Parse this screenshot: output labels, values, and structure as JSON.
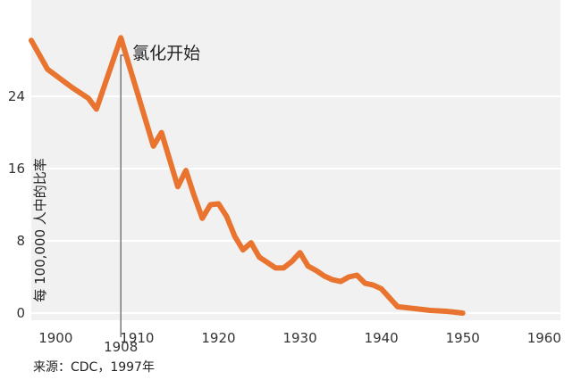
{
  "chart_data": {
    "type": "line",
    "title": "",
    "xlabel": "",
    "ylabel": "每 100,000 人中的比率",
    "xlim": [
      1897,
      1962
    ],
    "ylim": [
      0,
      33
    ],
    "x_ticks": [
      1900,
      1910,
      1920,
      1930,
      1940,
      1950,
      1960
    ],
    "x_tick_labels": [
      "1900",
      "1910",
      "1920",
      "1930",
      "1940",
      "1950",
      "1960"
    ],
    "y_ticks": [
      0,
      8,
      16,
      24
    ],
    "y_tick_labels": [
      "0",
      "8",
      "16",
      "24"
    ],
    "grid": "horizontal",
    "legend": "none",
    "series": [
      {
        "x": [
          1897,
          1899,
          1902,
          1904,
          1905,
          1908,
          1909,
          1910,
          1911,
          1912,
          1913,
          1914,
          1915,
          1916,
          1917,
          1918,
          1919,
          1920,
          1921,
          1922,
          1923,
          1924,
          1925,
          1926,
          1927,
          1928,
          1929,
          1930,
          1931,
          1932,
          1933,
          1934,
          1935,
          1936,
          1937,
          1938,
          1939,
          1940,
          1942,
          1944,
          1946,
          1948,
          1950
        ],
        "y": [
          30.2,
          27,
          25,
          23.8,
          22.6,
          30.5,
          27.5,
          24.5,
          21.5,
          18.5,
          20,
          17,
          14,
          15.8,
          13,
          10.5,
          12,
          12.1,
          10.7,
          8.5,
          7,
          7.8,
          6.2,
          5.6,
          5,
          5,
          5.7,
          6.7,
          5.2,
          4.7,
          4.1,
          3.7,
          3.5,
          4,
          4.2,
          3.3,
          3.1,
          2.7,
          0.7,
          0.5,
          0.3,
          0.2,
          0
        ]
      }
    ],
    "color": "#e8742f",
    "annotations": [
      {
        "x": 1908,
        "label": "1908",
        "text": "氯化开始"
      }
    ],
    "source": "来源：CDC，1997年"
  }
}
